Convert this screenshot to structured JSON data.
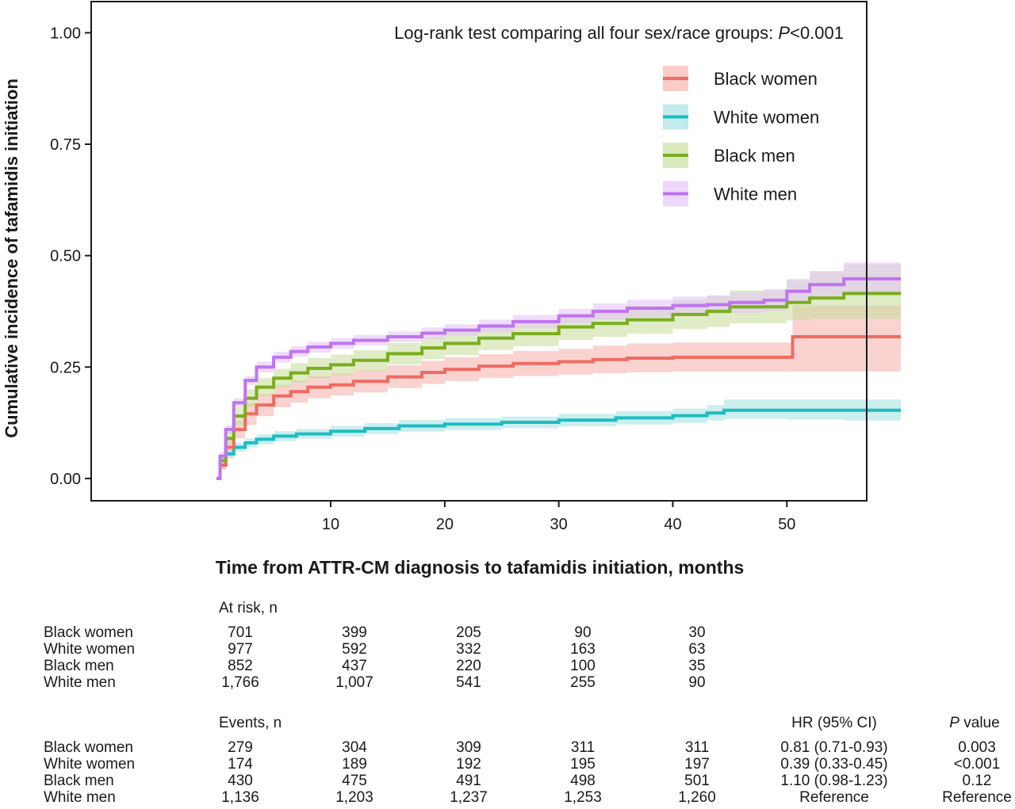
{
  "chart_data": {
    "type": "line",
    "subtype": "cumulative-incidence step",
    "annotation": "Log-rank test comparing all four sex/race groups: P<0.001",
    "annotation_prefix": "Log-rank test comparing all four sex/race groups: ",
    "annotation_p": "P",
    "annotation_suffix": "<0.001",
    "xlabel": "Time from ATTR-CM diagnosis to tafamidis initiation, months",
    "ylabel": "Cumulative incidence of tafamidis initiation",
    "xlim": [
      -11,
      57
    ],
    "ylim": [
      -0.05,
      1.07
    ],
    "xticks": [
      10,
      20,
      30,
      40,
      50
    ],
    "yticks": [
      0.0,
      0.25,
      0.5,
      0.75,
      1.0
    ],
    "ytick_labels": [
      "0.00",
      "0.25",
      "0.50",
      "0.75",
      "1.00"
    ],
    "legend_position": "top-right",
    "series": [
      {
        "name": "Black women",
        "color": "#ef6b61",
        "band_color": "#f6b6b0",
        "x": [
          0,
          0.3,
          0.8,
          1.5,
          2.5,
          3.5,
          5,
          6.5,
          8,
          10,
          12,
          15,
          18,
          20,
          23,
          26,
          30,
          33,
          36,
          40,
          45,
          50,
          50.5,
          55,
          60
        ],
        "y": [
          0,
          0.03,
          0.07,
          0.11,
          0.145,
          0.165,
          0.185,
          0.195,
          0.205,
          0.21,
          0.218,
          0.228,
          0.238,
          0.245,
          0.252,
          0.258,
          0.262,
          0.267,
          0.27,
          0.272,
          0.272,
          0.272,
          0.318,
          0.318,
          0.318
        ],
        "lower": [
          0,
          0.02,
          0.05,
          0.09,
          0.12,
          0.14,
          0.16,
          0.17,
          0.18,
          0.186,
          0.193,
          0.203,
          0.212,
          0.219,
          0.225,
          0.23,
          0.233,
          0.236,
          0.238,
          0.24,
          0.24,
          0.24,
          0.24,
          0.24,
          0.24
        ],
        "upper": [
          0,
          0.04,
          0.09,
          0.13,
          0.17,
          0.19,
          0.21,
          0.22,
          0.23,
          0.236,
          0.244,
          0.254,
          0.264,
          0.272,
          0.279,
          0.286,
          0.291,
          0.298,
          0.303,
          0.305,
          0.305,
          0.305,
          0.388,
          0.388,
          0.388
        ]
      },
      {
        "name": "White women",
        "color": "#1fbcc1",
        "band_color": "#a8e3e5",
        "x": [
          0,
          0.3,
          0.8,
          1.5,
          2.5,
          3.5,
          5,
          7,
          10,
          13,
          16,
          20,
          25,
          30,
          35,
          40,
          43,
          44.5,
          50,
          55,
          60
        ],
        "y": [
          0,
          0.03,
          0.055,
          0.07,
          0.08,
          0.088,
          0.095,
          0.1,
          0.106,
          0.112,
          0.118,
          0.122,
          0.126,
          0.131,
          0.136,
          0.141,
          0.147,
          0.153,
          0.153,
          0.153,
          0.153
        ],
        "lower": [
          0,
          0.02,
          0.045,
          0.06,
          0.07,
          0.077,
          0.084,
          0.089,
          0.094,
          0.1,
          0.105,
          0.109,
          0.113,
          0.117,
          0.121,
          0.125,
          0.13,
          0.134,
          0.132,
          0.13,
          0.13
        ],
        "upper": [
          0,
          0.04,
          0.065,
          0.08,
          0.09,
          0.099,
          0.106,
          0.111,
          0.118,
          0.124,
          0.131,
          0.135,
          0.139,
          0.145,
          0.151,
          0.157,
          0.165,
          0.177,
          0.177,
          0.177,
          0.177
        ]
      },
      {
        "name": "Black men",
        "color": "#7aad1e",
        "band_color": "#c9dfa0",
        "x": [
          0,
          0.3,
          0.8,
          1.5,
          2.5,
          3.5,
          5,
          6.5,
          8,
          10,
          12,
          15,
          18,
          20,
          23,
          26,
          30,
          33,
          36,
          40,
          43,
          45,
          50,
          52,
          55,
          60
        ],
        "y": [
          0,
          0.04,
          0.09,
          0.14,
          0.18,
          0.205,
          0.225,
          0.237,
          0.247,
          0.255,
          0.265,
          0.28,
          0.293,
          0.303,
          0.315,
          0.325,
          0.34,
          0.348,
          0.356,
          0.368,
          0.375,
          0.385,
          0.395,
          0.405,
          0.415,
          0.415
        ],
        "lower": [
          0,
          0.03,
          0.075,
          0.12,
          0.16,
          0.185,
          0.204,
          0.215,
          0.225,
          0.232,
          0.242,
          0.256,
          0.268,
          0.277,
          0.288,
          0.297,
          0.311,
          0.318,
          0.325,
          0.335,
          0.34,
          0.348,
          0.355,
          0.358,
          0.358,
          0.358
        ],
        "upper": [
          0,
          0.05,
          0.105,
          0.16,
          0.2,
          0.225,
          0.246,
          0.259,
          0.27,
          0.278,
          0.288,
          0.304,
          0.318,
          0.329,
          0.342,
          0.353,
          0.369,
          0.378,
          0.387,
          0.401,
          0.41,
          0.422,
          0.445,
          0.465,
          0.48,
          0.48
        ]
      },
      {
        "name": "White men",
        "color": "#bf74f0",
        "band_color": "#e5c7f8",
        "x": [
          0,
          0.3,
          0.8,
          1.5,
          2.5,
          3.5,
          5,
          6.5,
          8,
          10,
          12,
          15,
          18,
          20,
          23,
          26,
          30,
          33,
          36,
          40,
          43,
          45,
          48,
          50,
          52,
          55,
          60
        ],
        "y": [
          0,
          0.05,
          0.11,
          0.17,
          0.22,
          0.25,
          0.272,
          0.285,
          0.295,
          0.303,
          0.31,
          0.318,
          0.326,
          0.333,
          0.342,
          0.352,
          0.365,
          0.375,
          0.382,
          0.388,
          0.39,
          0.395,
          0.4,
          0.42,
          0.435,
          0.448,
          0.448
        ],
        "lower": [
          0,
          0.04,
          0.1,
          0.16,
          0.21,
          0.238,
          0.26,
          0.273,
          0.283,
          0.291,
          0.298,
          0.306,
          0.313,
          0.32,
          0.328,
          0.337,
          0.349,
          0.357,
          0.363,
          0.368,
          0.369,
          0.372,
          0.375,
          0.392,
          0.405,
          0.412,
          0.412
        ],
        "upper": [
          0,
          0.06,
          0.12,
          0.18,
          0.23,
          0.262,
          0.284,
          0.297,
          0.307,
          0.315,
          0.322,
          0.33,
          0.339,
          0.346,
          0.356,
          0.367,
          0.381,
          0.393,
          0.401,
          0.408,
          0.411,
          0.418,
          0.425,
          0.448,
          0.465,
          0.485,
          0.485
        ]
      }
    ]
  },
  "risk_table": {
    "header": "At risk, n",
    "rows": [
      {
        "label": "Black women",
        "values": [
          "701",
          "399",
          "205",
          "90",
          "30"
        ]
      },
      {
        "label": "White women",
        "values": [
          "977",
          "592",
          "332",
          "163",
          "63"
        ]
      },
      {
        "label": "Black men",
        "values": [
          "852",
          "437",
          "220",
          "100",
          "35"
        ]
      },
      {
        "label": "White men",
        "values": [
          "1,766",
          "1,007",
          "541",
          "255",
          "90"
        ]
      }
    ]
  },
  "events_table": {
    "header": "Events, n",
    "hr_header": "HR (95% CI)",
    "p_header_italic": "P",
    "p_header_rest": " value",
    "rows": [
      {
        "label": "Black women",
        "values": [
          "279",
          "304",
          "309",
          "311",
          "311"
        ],
        "hr": "0.81 (0.71-0.93)",
        "p": "0.003"
      },
      {
        "label": "White women",
        "values": [
          "174",
          "189",
          "192",
          "195",
          "197"
        ],
        "hr": "0.39 (0.33-0.45)",
        "p": "<0.001"
      },
      {
        "label": "Black men",
        "values": [
          "430",
          "475",
          "491",
          "498",
          "501"
        ],
        "hr": "1.10 (0.98-1.23)",
        "p": "0.12"
      },
      {
        "label": "White men",
        "values": [
          "1,136",
          "1,203",
          "1,237",
          "1,253",
          "1,260"
        ],
        "hr": "Reference",
        "p": "Reference"
      }
    ]
  }
}
